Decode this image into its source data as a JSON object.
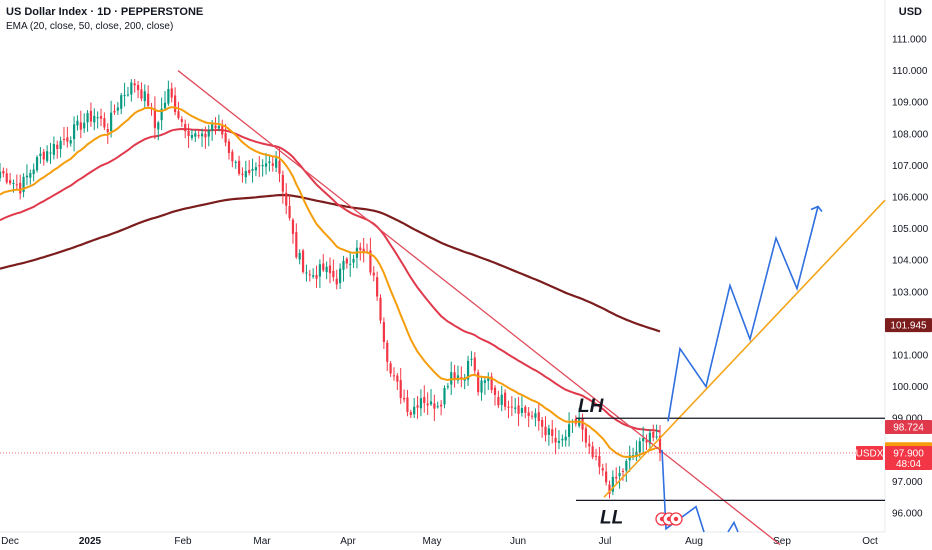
{
  "header": {
    "title": "US Dollar Index · 1D · PEPPERSTONE",
    "indicator": "EMA (20, close, 50, close, 200, close)",
    "currency": "USD"
  },
  "chart_data": {
    "type": "candlestick",
    "ylim": [
      95.4,
      111.6
    ],
    "y_ticks": [
      "111.000",
      "110.000",
      "109.000",
      "108.000",
      "107.000",
      "106.000",
      "105.000",
      "104.000",
      "103.000",
      "102.000",
      "101.000",
      "100.000",
      "99.000",
      "98.000",
      "97.000",
      "96.000"
    ],
    "x_ticks": [
      "Dec",
      "2025",
      "Feb",
      "Mar",
      "Apr",
      "May",
      "Jun",
      "Jul",
      "Aug",
      "Sep",
      "Oct"
    ],
    "x_ticks_bold": "2025",
    "colors": {
      "up": "#089981",
      "down": "#f23645",
      "ema20": "#f59d0a",
      "ema50": "#e0394c",
      "ema200": "#7b1d1d",
      "trend": "#e04b5a",
      "projection": "#2f6fe0",
      "support": "#f5a51a",
      "hline": "#131722"
    },
    "ohlc_anchor_closes": [
      [
        0,
        106.8
      ],
      [
        6,
        106.3
      ],
      [
        12,
        107.3
      ],
      [
        16,
        107.6
      ],
      [
        20,
        107.9
      ],
      [
        24,
        108.3
      ],
      [
        28,
        108.6
      ],
      [
        32,
        108.2
      ],
      [
        36,
        109.2
      ],
      [
        40,
        109.6
      ],
      [
        44,
        109.0
      ],
      [
        46,
        108.2
      ],
      [
        50,
        109.3
      ],
      [
        54,
        108.4
      ],
      [
        57,
        108.0
      ],
      [
        60,
        107.8
      ],
      [
        63,
        108.3
      ],
      [
        66,
        108.0
      ],
      [
        70,
        107.0
      ],
      [
        74,
        106.6
      ],
      [
        78,
        106.9
      ],
      [
        82,
        107.3
      ],
      [
        84,
        106.3
      ],
      [
        88,
        104.2
      ],
      [
        92,
        103.5
      ],
      [
        96,
        103.7
      ],
      [
        100,
        103.4
      ],
      [
        103,
        104.0
      ],
      [
        106,
        104.3
      ],
      [
        109,
        104.1
      ],
      [
        112,
        103.0
      ],
      [
        114,
        101.6
      ],
      [
        116,
        100.4
      ],
      [
        119,
        99.8
      ],
      [
        122,
        99.2
      ],
      [
        125,
        99.7
      ],
      [
        128,
        99.4
      ],
      [
        131,
        99.6
      ],
      [
        134,
        100.5
      ],
      [
        137,
        100.3
      ],
      [
        140,
        100.9
      ],
      [
        142,
        99.9
      ],
      [
        145,
        100.2
      ],
      [
        148,
        99.6
      ],
      [
        152,
        99.5
      ],
      [
        156,
        99.2
      ],
      [
        160,
        98.9
      ],
      [
        163,
        98.5
      ],
      [
        166,
        98.1
      ],
      [
        169,
        98.6
      ],
      [
        172,
        99.0
      ],
      [
        174,
        98.1
      ],
      [
        178,
        97.4
      ],
      [
        181,
        96.8
      ],
      [
        184,
        97.2
      ],
      [
        187,
        97.7
      ],
      [
        190,
        98.1
      ],
      [
        193,
        98.6
      ],
      [
        195,
        98.2
      ],
      [
        196,
        97.9
      ]
    ],
    "ema_levels": {
      "ema20_last": "98.017",
      "ema50_last": "98.724",
      "ema200_last": "101.945"
    },
    "last_price": {
      "symbol": "USDX",
      "value": "97.900",
      "countdown": "48:04"
    },
    "annotations": [
      {
        "text": "LH",
        "value": 99.0
      },
      {
        "text": "LL",
        "value": 96.4
      }
    ],
    "levels": [
      99.0,
      96.4
    ],
    "projection_path": [
      98.9,
      101.2,
      100.0,
      103.2,
      101.5,
      104.7,
      103.1,
      105.7
    ],
    "projection_down": [
      98.0,
      95.5,
      96.2,
      95.4
    ]
  }
}
